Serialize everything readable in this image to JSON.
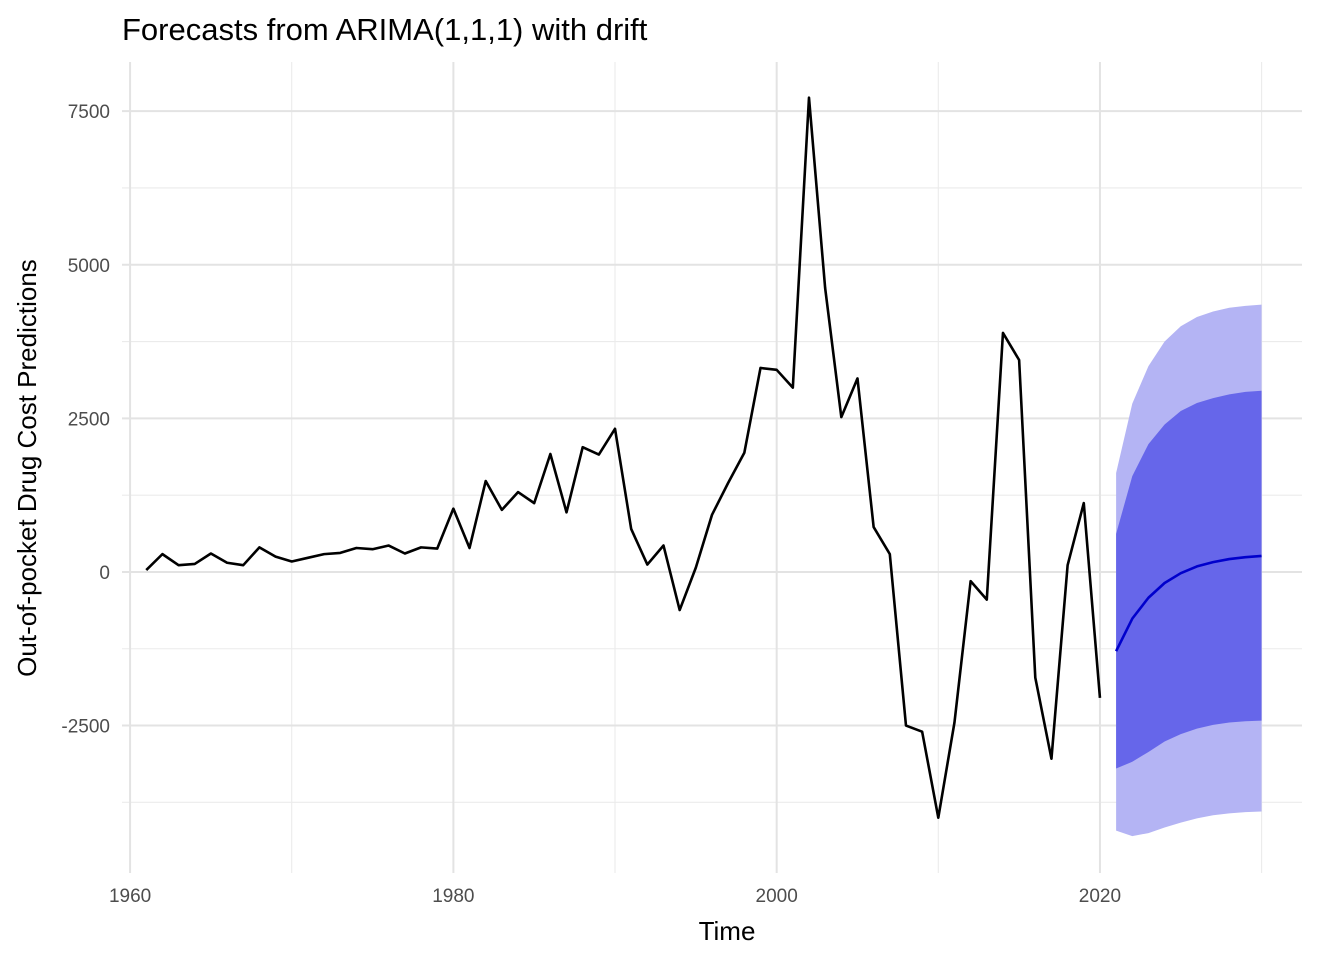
{
  "chart_data": {
    "type": "line",
    "title": "Forecasts from ARIMA(1,1,1) with drift",
    "xlabel": "Time",
    "ylabel": "Out-of-pocket Drug Cost Predictions",
    "xlim": [
      1959.5,
      2032.5
    ],
    "ylim": [
      -4900,
      8300
    ],
    "x_ticks": [
      1960,
      1980,
      2000,
      2020
    ],
    "x_tick_labels": [
      "1960",
      "1980",
      "2000",
      "2020"
    ],
    "y_ticks": [
      -2500,
      0,
      2500,
      5000,
      7500
    ],
    "y_tick_labels": [
      "-2500",
      "0",
      "2500",
      "5000",
      "7500"
    ],
    "grid": true,
    "legend": "none",
    "series": [
      {
        "role": "observed",
        "color": "#000000",
        "x": [
          1961,
          1962,
          1963,
          1964,
          1965,
          1966,
          1967,
          1968,
          1969,
          1970,
          1971,
          1972,
          1973,
          1974,
          1975,
          1976,
          1977,
          1978,
          1979,
          1980,
          1981,
          1982,
          1983,
          1984,
          1985,
          1986,
          1987,
          1988,
          1989,
          1990,
          1991,
          1992,
          1993,
          1994,
          1995,
          1996,
          1997,
          1998,
          1999,
          2000,
          2001,
          2002,
          2003,
          2004,
          2005,
          2006,
          2007,
          2008,
          2009,
          2010,
          2011,
          2012,
          2013,
          2014,
          2015,
          2016,
          2017,
          2018,
          2019,
          2020
        ],
        "y": [
          30,
          290,
          110,
          130,
          300,
          150,
          110,
          400,
          250,
          170,
          230,
          290,
          310,
          390,
          370,
          430,
          300,
          400,
          380,
          1030,
          390,
          1480,
          1010,
          1300,
          1120,
          1920,
          970,
          2030,
          1910,
          2330,
          700,
          120,
          430,
          -620,
          70,
          930,
          1450,
          1940,
          3320,
          3290,
          3000,
          7720,
          4620,
          2520,
          3150,
          730,
          290,
          -2500,
          -2600,
          -4000,
          -2450,
          -150,
          -450,
          3890,
          3450,
          -1720,
          -3040,
          110,
          1120,
          -2050
        ]
      },
      {
        "role": "forecast-mean",
        "color": "#0000cc",
        "x": [
          2021,
          2022,
          2023,
          2024,
          2025,
          2026,
          2027,
          2028,
          2029,
          2030
        ],
        "y": [
          -1290,
          -760,
          -420,
          -180,
          -20,
          90,
          160,
          210,
          240,
          260
        ]
      },
      {
        "role": "80% interval",
        "color": "#6666ea",
        "x": [
          2021,
          2022,
          2023,
          2024,
          2025,
          2026,
          2027,
          2028,
          2029,
          2030
        ],
        "lower": [
          -3200,
          -3090,
          -2930,
          -2760,
          -2640,
          -2550,
          -2490,
          -2450,
          -2430,
          -2420
        ],
        "upper": [
          620,
          1560,
          2080,
          2400,
          2620,
          2750,
          2830,
          2890,
          2930,
          2950
        ]
      },
      {
        "role": "95% interval",
        "color": "#b4b4f4",
        "x": [
          2021,
          2022,
          2023,
          2024,
          2025,
          2026,
          2027,
          2028,
          2029,
          2030
        ],
        "lower": [
          -4210,
          -4300,
          -4250,
          -4160,
          -4080,
          -4010,
          -3960,
          -3930,
          -3910,
          -3900
        ],
        "upper": [
          1610,
          2740,
          3350,
          3750,
          4000,
          4150,
          4240,
          4300,
          4330,
          4350
        ]
      }
    ]
  }
}
